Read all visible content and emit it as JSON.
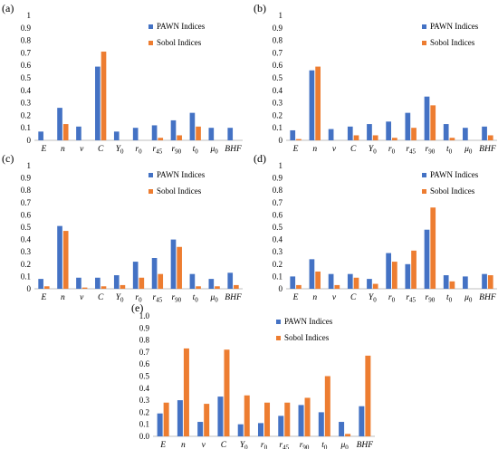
{
  "colors": {
    "pawn": "#4472C4",
    "sobol": "#ED7D31",
    "axis": "#bfbfbf"
  },
  "legend": {
    "pawn": "PAWN Indices",
    "sobol": "Sobol Indices"
  },
  "chart_data": [
    {
      "panel": "(a)",
      "type": "bar",
      "ylim": [
        0,
        1.0
      ],
      "yticks": [
        "0",
        "0.1",
        "0.2",
        "0.3",
        "0.4",
        "0.5",
        "0.6",
        "0.7",
        "0.8",
        "0.9",
        "1"
      ],
      "categories": [
        "E",
        "n",
        "ν",
        "C",
        "Y0",
        "r0",
        "r45",
        "r90",
        "t0",
        "μ0",
        "BHF"
      ],
      "series": [
        {
          "name": "PAWN Indices",
          "values": [
            0.07,
            0.26,
            0.11,
            0.59,
            0.07,
            0.1,
            0.12,
            0.16,
            0.22,
            0.1,
            0.1
          ]
        },
        {
          "name": "Sobol Indices",
          "values": [
            0.0,
            0.13,
            0.0,
            0.71,
            0.0,
            0.0,
            0.02,
            0.04,
            0.11,
            0.0,
            0.0
          ]
        }
      ]
    },
    {
      "panel": "(b)",
      "type": "bar",
      "ylim": [
        0,
        1.0
      ],
      "yticks": [
        "0",
        "0.1",
        "0.2",
        "0.3",
        "0.4",
        "0.5",
        "0.6",
        "0.7",
        "0.8",
        "0.9",
        "1"
      ],
      "categories": [
        "E",
        "n",
        "ν",
        "C",
        "Y0",
        "r0",
        "r45",
        "r90",
        "t0",
        "μ0",
        "BHF"
      ],
      "series": [
        {
          "name": "PAWN Indices",
          "values": [
            0.08,
            0.56,
            0.09,
            0.11,
            0.13,
            0.15,
            0.22,
            0.35,
            0.13,
            0.1,
            0.11
          ]
        },
        {
          "name": "Sobol Indices",
          "values": [
            0.01,
            0.59,
            0.0,
            0.04,
            0.04,
            0.02,
            0.1,
            0.28,
            0.02,
            0.0,
            0.04
          ]
        }
      ]
    },
    {
      "panel": "(c)",
      "type": "bar",
      "ylim": [
        0,
        1.0
      ],
      "yticks": [
        "0",
        "0.1",
        "0.2",
        "0.3",
        "0.4",
        "0.5",
        "0.6",
        "0.7",
        "0.8",
        "0.9",
        "1"
      ],
      "categories": [
        "E",
        "n",
        "ν",
        "C",
        "Y0",
        "r0",
        "r45",
        "r90",
        "t0",
        "μ0",
        "BHF"
      ],
      "series": [
        {
          "name": "PAWN Indices",
          "values": [
            0.08,
            0.51,
            0.09,
            0.09,
            0.11,
            0.22,
            0.25,
            0.4,
            0.12,
            0.08,
            0.13
          ]
        },
        {
          "name": "Sobol Indices",
          "values": [
            0.02,
            0.47,
            0.01,
            0.02,
            0.03,
            0.09,
            0.12,
            0.34,
            0.02,
            0.02,
            0.03
          ]
        }
      ]
    },
    {
      "panel": "(d)",
      "type": "bar",
      "ylim": [
        0,
        1.0
      ],
      "yticks": [
        "0",
        "0.1",
        "0.2",
        "0.3",
        "0.4",
        "0.5",
        "0.6",
        "0.7",
        "0.8",
        "0.9",
        "1"
      ],
      "categories": [
        "E",
        "n",
        "ν",
        "C",
        "Y0",
        "r0",
        "r45",
        "r90",
        "t0",
        "μ0",
        "BHF"
      ],
      "series": [
        {
          "name": "PAWN Indices",
          "values": [
            0.1,
            0.24,
            0.12,
            0.12,
            0.08,
            0.29,
            0.2,
            0.48,
            0.11,
            0.1,
            0.12
          ]
        },
        {
          "name": "Sobol Indices",
          "values": [
            0.03,
            0.14,
            0.03,
            0.09,
            0.04,
            0.22,
            0.31,
            0.66,
            0.06,
            0.0,
            0.11
          ]
        }
      ]
    },
    {
      "panel": "(e)",
      "type": "bar",
      "ylim": [
        0,
        1.0
      ],
      "yticks": [
        "0.0",
        "0.1",
        "0.2",
        "0.3",
        "0.4",
        "0.5",
        "0.6",
        "0.7",
        "0.8",
        "0.9",
        "1.0"
      ],
      "categories": [
        "E",
        "n",
        "ν",
        "C",
        "Y0",
        "r0",
        "r45",
        "r90",
        "t0",
        "μ0",
        "BHF"
      ],
      "series": [
        {
          "name": "PAWN Indices",
          "values": [
            0.19,
            0.3,
            0.12,
            0.33,
            0.1,
            0.11,
            0.17,
            0.26,
            0.2,
            0.12,
            0.25
          ]
        },
        {
          "name": "Sobol Indices",
          "values": [
            0.28,
            0.73,
            0.27,
            0.72,
            0.34,
            0.28,
            0.28,
            0.32,
            0.5,
            0.02,
            0.67
          ]
        }
      ]
    }
  ]
}
